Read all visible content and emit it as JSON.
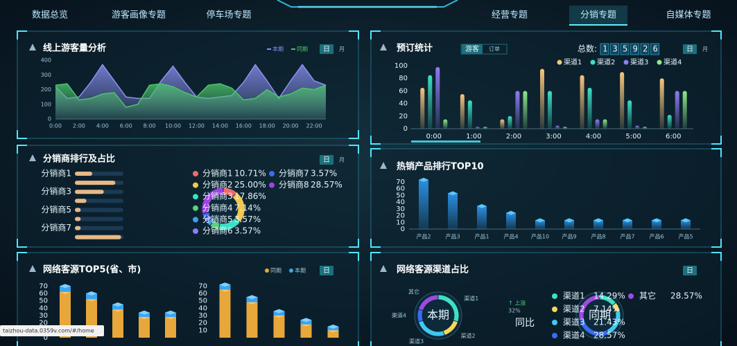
{
  "nav": {
    "left": [
      "数据总览",
      "游客画像专题",
      "停车场专题"
    ],
    "right": [
      "经营专题",
      "分销专题",
      "自媒体专题"
    ],
    "active_right_index": 1
  },
  "url": "taizhou-data.0359v.com/#/home",
  "chart_data": [
    {
      "type": "line",
      "title": "线上游客量分析",
      "tabs": [
        "日",
        "月"
      ],
      "categories": [
        "0:00",
        null,
        "2:00",
        null,
        "4:00",
        null,
        "6:00",
        null,
        "8:00",
        null,
        "10:00",
        null,
        "12:00",
        null,
        "14:00",
        null,
        "16:00",
        null,
        "18:00",
        null,
        "20:00",
        null,
        "22:00",
        null
      ],
      "series": [
        {
          "name": "本期",
          "color": "#8b90f2",
          "values": [
            220,
            140,
            150,
            250,
            370,
            260,
            150,
            140,
            140,
            260,
            360,
            250,
            150,
            140,
            150,
            160,
            250,
            370,
            260,
            140,
            260,
            370,
            260,
            230
          ]
        },
        {
          "name": "同期",
          "color": "#4cc46a",
          "values": [
            230,
            240,
            130,
            140,
            170,
            180,
            80,
            100,
            230,
            240,
            220,
            180,
            150,
            230,
            240,
            210,
            130,
            140,
            200,
            150,
            170,
            210,
            200,
            230
          ]
        }
      ],
      "ylim": [
        0,
        400
      ],
      "yticks": [
        0,
        100,
        200,
        300,
        400
      ],
      "grid": false
    },
    {
      "type": "bar",
      "title": "预订统计",
      "tabs": [
        "游客",
        "订单"
      ],
      "period_tabs": [
        "日",
        "月"
      ],
      "total_label": "总数:",
      "total": 135926,
      "categories": [
        "0:00",
        "1:00",
        "2:00",
        "3:00",
        "4:00",
        "5:00",
        "6:00"
      ],
      "series": [
        {
          "name": "渠道1",
          "color": "#f5c67c",
          "values": [
            65,
            55,
            15,
            95,
            85,
            90,
            80
          ]
        },
        {
          "name": "渠道2",
          "color": "#3ee0c5",
          "values": [
            85,
            45,
            20,
            60,
            65,
            45,
            22
          ]
        },
        {
          "name": "渠道3",
          "color": "#8f7cf5",
          "values": [
            98,
            3,
            60,
            5,
            15,
            5,
            60
          ]
        },
        {
          "name": "渠道4",
          "color": "#8ee88a",
          "values": [
            15,
            3,
            60,
            3,
            15,
            3,
            60
          ]
        }
      ],
      "ylim": [
        0,
        100
      ],
      "yticks": [
        0,
        20,
        40,
        60,
        80,
        100
      ],
      "grid": false
    },
    {
      "type": "pie",
      "title": "分销商排行及占比",
      "tabs": [
        "日",
        "月"
      ],
      "categories": [
        "分销商1",
        "分销商2",
        "分销商3",
        "分销商4",
        "分销商5",
        "分销商6",
        "分销商7",
        "分销商8"
      ],
      "values": [
        10.71,
        25.0,
        17.86,
        7.14,
        3.57,
        3.57,
        3.57,
        28.57
      ],
      "value_labels": [
        "10.71%",
        "25.00%",
        "17.86%",
        "7.14%",
        "3.57%",
        "3.57%",
        "3.57%",
        "28.57%"
      ],
      "colors": [
        "#f06a6a",
        "#f5c84c",
        "#3ee0c5",
        "#5ad07a",
        "#3aa0f0",
        "#8b7cf6",
        "#3a6cf0",
        "#a040e0"
      ],
      "xlim": [
        0,
        30
      ]
    },
    {
      "type": "bar3d",
      "title": "热销产品排行TOP10",
      "categories": [
        "产品2",
        "产品3",
        "产品1",
        "产品4",
        "产品10",
        "产品9",
        "产品8",
        "产品7",
        "产品6",
        "产品5"
      ],
      "values": [
        73,
        53,
        34,
        24,
        13,
        13,
        13,
        13,
        13,
        13
      ],
      "color": "#2a8fe0",
      "ylim": [
        0,
        78
      ],
      "yticks": [
        0,
        10,
        20,
        30,
        40,
        50,
        60,
        70
      ],
      "grid": false
    },
    {
      "type": "stacked",
      "title": "网络客源TOP5(省、市)",
      "tabs": [
        "日"
      ],
      "series": [
        {
          "name": "同期",
          "color": "#e8a73a",
          "values": [
            62,
            52,
            38,
            28,
            28
          ]
        },
        {
          "name": "本期",
          "color": "#3aa6f0",
          "values": [
            8,
            8,
            7,
            6,
            6
          ]
        }
      ],
      "ylim": [
        0,
        75
      ],
      "yticks": [
        0,
        10,
        20,
        30,
        40,
        50,
        60,
        70
      ]
    },
    {
      "type": "stacked",
      "series": [
        {
          "color": "#e8a73a",
          "values": [
            65,
            48,
            30,
            18,
            10
          ]
        },
        {
          "color": "#3aa6f0",
          "values": [
            7,
            7,
            6,
            6,
            5
          ]
        }
      ],
      "ylim": [
        0,
        75
      ],
      "yticks": [
        10,
        20,
        30,
        40,
        50,
        60,
        70
      ]
    },
    {
      "type": "pie",
      "title": "网络客源渠道占比",
      "tabs": [
        "日"
      ],
      "center_label": "本期",
      "categories": [
        "渠道1",
        "渠道2",
        "渠道3",
        "渠道4",
        "其它"
      ],
      "values": [
        30,
        15,
        25,
        10,
        20
      ],
      "colors": [
        "#3ee0c5",
        "#f5d75a",
        "#40c8f0",
        "#3a6cf0",
        "#9b4ce0"
      ],
      "change": {
        "title": "同比",
        "trend": "↑ 上涨",
        "value_label": "32%"
      }
    },
    {
      "type": "pie",
      "center_label": "同期",
      "categories": [
        "渠道1",
        "渠道2",
        "渠道3",
        "渠道4",
        "其它"
      ],
      "values": [
        14.29,
        7.14,
        21.43,
        28.57,
        28.57
      ],
      "value_labels": [
        "14.29%",
        "7.14%",
        "21.43%",
        "28.57%",
        "28.57%"
      ],
      "colors": [
        "#3ee0c5",
        "#f5d75a",
        "#40c8f0",
        "#3a6cf0",
        "#9b4ce0"
      ]
    }
  ]
}
